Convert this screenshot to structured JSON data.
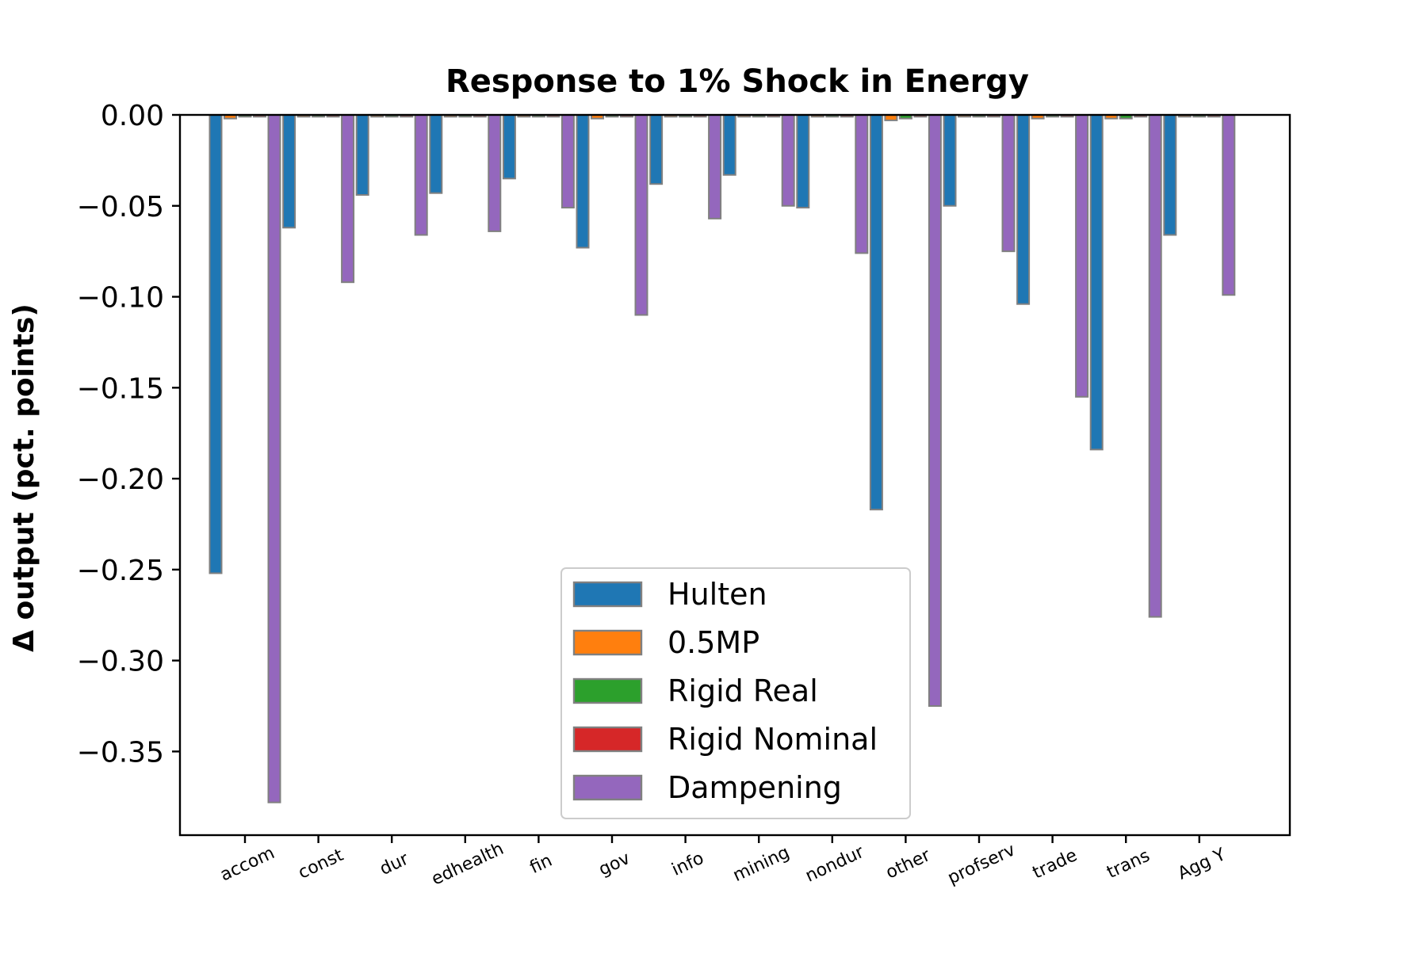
{
  "chart_data": {
    "type": "bar",
    "title": "Response to 1% Shock in Energy",
    "ylabel": "Δ output (pct. points)",
    "xlabel": "",
    "ylim": [
      -0.396,
      0.0
    ],
    "yticks": [
      0.0,
      -0.05,
      -0.1,
      -0.15,
      -0.2,
      -0.25,
      -0.3,
      -0.35
    ],
    "ytick_labels": [
      "0.00",
      "−0.05",
      "−0.10",
      "−0.15",
      "−0.20",
      "−0.25",
      "−0.30",
      "−0.35"
    ],
    "categories": [
      "accom",
      "const",
      "dur",
      "edhealth",
      "fin",
      "gov",
      "info",
      "mining",
      "nondur",
      "other",
      "profserv",
      "trade",
      "trans",
      "Agg Y"
    ],
    "series": [
      {
        "name": "Hulten",
        "color": "#1f77b4",
        "values": [
          -0.252,
          -0.062,
          -0.044,
          -0.043,
          -0.035,
          -0.073,
          -0.038,
          -0.033,
          -0.051,
          -0.217,
          -0.05,
          -0.104,
          -0.184,
          -0.066
        ]
      },
      {
        "name": "0.5MP",
        "color": "#ff7f0e",
        "values": [
          -0.002,
          -0.001,
          -0.001,
          -0.001,
          -0.001,
          -0.002,
          -0.001,
          -0.001,
          -0.001,
          -0.003,
          -0.001,
          -0.002,
          -0.002,
          -0.001
        ]
      },
      {
        "name": "Rigid Real",
        "color": "#2ca02c",
        "values": [
          -0.001,
          -0.001,
          -0.001,
          -0.001,
          -0.001,
          -0.001,
          -0.001,
          -0.001,
          -0.001,
          -0.002,
          -0.001,
          -0.001,
          -0.002,
          -0.001
        ]
      },
      {
        "name": "Rigid Nominal",
        "color": "#d62728",
        "values": [
          -0.001,
          -0.001,
          -0.001,
          -0.001,
          -0.001,
          -0.001,
          -0.001,
          -0.001,
          -0.001,
          -0.001,
          -0.001,
          -0.001,
          -0.001,
          -0.001
        ]
      },
      {
        "name": "Dampening",
        "color": "#9467bd",
        "values": [
          -0.378,
          -0.092,
          -0.066,
          -0.064,
          -0.051,
          -0.11,
          -0.057,
          -0.05,
          -0.076,
          -0.325,
          -0.075,
          -0.155,
          -0.276,
          -0.099
        ]
      }
    ],
    "legend_position": "lower center",
    "grid": false,
    "bar_edge_color": "#808080"
  }
}
